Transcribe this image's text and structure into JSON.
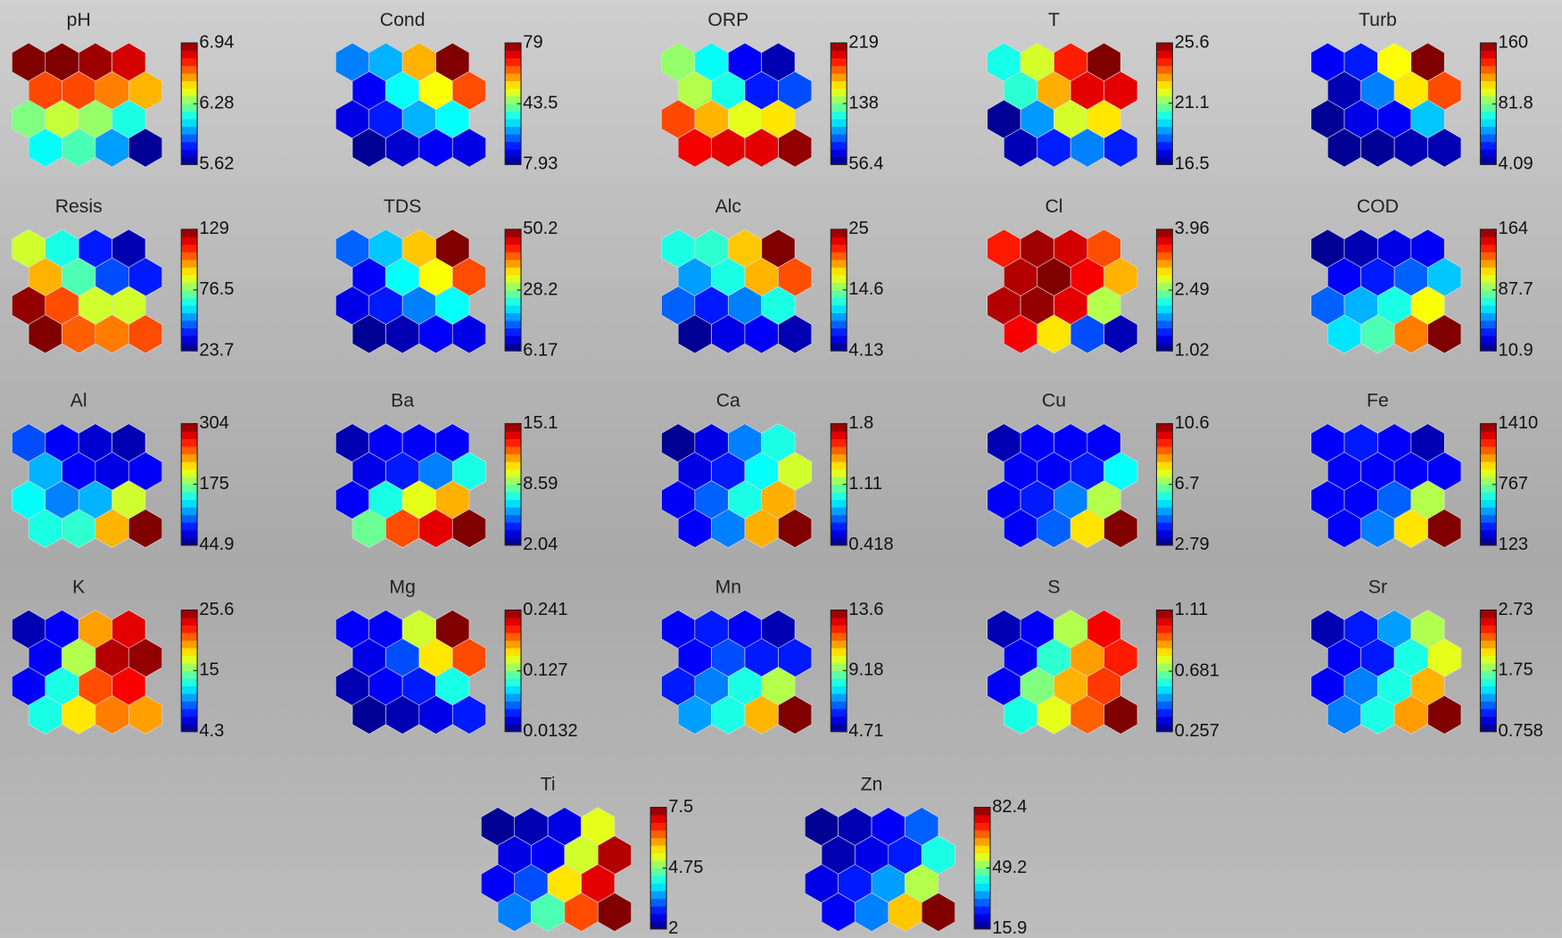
{
  "chart_data": [
    {
      "type": "hexmap",
      "title": "pH",
      "colormap": "jet",
      "clim": [
        5.62,
        6.94
      ],
      "cticks": [
        5.62,
        6.28,
        6.94
      ],
      "values": [
        6.94,
        6.94,
        6.9,
        6.83,
        6.68,
        6.68,
        6.61,
        6.54,
        6.28,
        6.37,
        6.31,
        6.15,
        6.12,
        6.21,
        5.99,
        5.65
      ]
    },
    {
      "type": "hexmap",
      "title": "Cond",
      "colormap": "jet",
      "clim": [
        7.93,
        79
      ],
      "cticks": [
        7.93,
        43.5,
        79
      ],
      "values": [
        25.7,
        29.2,
        57.7,
        79,
        16.5,
        34.9,
        52.0,
        64.8,
        15.0,
        18.6,
        29.2,
        34.9,
        9.35,
        13.6,
        16.5,
        15.0
      ]
    },
    {
      "type": "hexmap",
      "title": "ORP",
      "colormap": "jet",
      "clim": [
        56.4,
        219
      ],
      "cticks": [
        56.4,
        138,
        219
      ],
      "values": [
        141,
        118,
        75.9,
        64.5,
        146,
        121,
        80.8,
        88.9,
        187,
        170,
        154,
        162,
        200,
        203,
        203,
        216
      ]
    },
    {
      "type": "hexmap",
      "title": "T",
      "colormap": "jet",
      "clim": [
        16.5,
        25.6
      ],
      "cticks": [
        16.5,
        21.1,
        25.6
      ],
      "values": [
        20.1,
        21.8,
        24.2,
        25.6,
        20.3,
        22.9,
        24.7,
        24.7,
        16.7,
        19.0,
        21.8,
        22.4,
        17.0,
        17.9,
        18.8,
        17.9
      ]
    },
    {
      "type": "hexmap",
      "title": "Turb",
      "colormap": "jet",
      "clim": [
        4.09,
        160
      ],
      "cticks": [
        4.09,
        81.8,
        160
      ],
      "values": [
        22.8,
        27.5,
        101,
        160,
        11.9,
        43.1,
        105,
        129,
        7.2,
        19.7,
        22.8,
        54.0,
        7.2,
        7.2,
        11.9,
        11.9
      ]
    },
    {
      "type": "hexmap",
      "title": "Resis",
      "colormap": "jet",
      "clim": [
        23.7,
        129
      ],
      "cticks": [
        23.7,
        76.5,
        129
      ],
      "values": [
        84.8,
        65.8,
        39.5,
        29.0,
        97.4,
        71.1,
        44.8,
        39.5,
        127,
        108,
        84.8,
        84.8,
        129,
        106,
        103,
        108
      ]
    },
    {
      "type": "hexmap",
      "title": "TDS",
      "colormap": "jet",
      "clim": [
        6.17,
        50.2
      ],
      "cticks": [
        6.17,
        28.2,
        50.2
      ],
      "values": [
        15.9,
        20.3,
        36.1,
        50.2,
        11.5,
        22.9,
        33.5,
        41.4,
        10.6,
        12.8,
        17.2,
        22.9,
        7.05,
        8.37,
        11.5,
        10.6
      ]
    },
    {
      "type": "hexmap",
      "title": "Alc",
      "colormap": "jet",
      "clim": [
        4.13,
        25
      ],
      "cticks": [
        4.13,
        14.6,
        25
      ],
      "values": [
        12.5,
        12.9,
        18.3,
        25,
        10.0,
        12.5,
        18.7,
        20.8,
        8.72,
        7.26,
        9.35,
        12.5,
        4.55,
        6.22,
        6.63,
        5.17
      ]
    },
    {
      "type": "hexmap",
      "title": "Cl",
      "colormap": "jet",
      "clim": [
        1.02,
        3.96
      ],
      "cticks": [
        1.02,
        2.49,
        3.96
      ],
      "values": [
        3.52,
        3.87,
        3.72,
        3.37,
        3.81,
        3.96,
        3.61,
        3.08,
        3.81,
        3.9,
        3.67,
        2.64,
        3.61,
        2.93,
        1.61,
        1.17
      ]
    },
    {
      "type": "hexmap",
      "title": "COD",
      "colormap": "jet",
      "clim": [
        10.9,
        164
      ],
      "cticks": [
        10.9,
        87.7,
        164
      ],
      "values": [
        14.0,
        18.6,
        26.2,
        29.3,
        29.3,
        33.9,
        44.6,
        59.9,
        44.6,
        56.8,
        72.1,
        106,
        64.5,
        79.8,
        126,
        164
      ]
    },
    {
      "type": "hexmap",
      "title": "Al",
      "colormap": "jet",
      "clim": [
        44.9,
        304
      ],
      "cticks": [
        44.9,
        175,
        304
      ],
      "values": [
        96.7,
        76.0,
        65.6,
        57.9,
        123,
        76.0,
        70.8,
        76.0,
        143,
        110,
        123,
        195,
        149,
        154,
        226,
        304
      ]
    },
    {
      "type": "hexmap",
      "title": "Ba",
      "colormap": "jet",
      "clim": [
        2.04,
        15.1
      ],
      "cticks": [
        2.04,
        8.59,
        15.1
      ],
      "values": [
        2.69,
        3.61,
        3.61,
        3.61,
        3.35,
        4.0,
        5.31,
        7.26,
        3.61,
        7.26,
        9.88,
        11.2,
        8.31,
        12.5,
        13.8,
        15.1
      ]
    },
    {
      "type": "hexmap",
      "title": "Ca",
      "colormap": "jet",
      "clim": [
        0.418,
        1.8
      ],
      "cticks": [
        0.418,
        1.11,
        1.8
      ],
      "values": [
        0.446,
        0.556,
        0.764,
        0.971,
        0.556,
        0.625,
        0.943,
        1.22,
        0.584,
        0.722,
        0.971,
        1.39,
        0.584,
        0.764,
        1.39,
        1.8
      ]
    },
    {
      "type": "hexmap",
      "title": "Cu",
      "colormap": "jet",
      "clim": [
        2.79,
        10.6
      ],
      "cticks": [
        2.79,
        6.7,
        10.6
      ],
      "values": [
        3.18,
        3.73,
        3.73,
        3.73,
        3.73,
        3.73,
        3.96,
        5.76,
        3.73,
        3.96,
        4.74,
        7.09,
        3.73,
        4.51,
        7.87,
        10.6
      ]
    },
    {
      "type": "hexmap",
      "title": "Fe",
      "colormap": "jet",
      "clim": [
        123,
        1410
      ],
      "cticks": [
        123,
        767,
        1410
      ],
      "values": [
        277,
        316,
        277,
        187,
        277,
        277,
        277,
        277,
        277,
        277,
        406,
        831,
        277,
        445,
        960,
        1410
      ]
    },
    {
      "type": "hexmap",
      "title": "K",
      "colormap": "jet",
      "clim": [
        4.3,
        25.6
      ],
      "cticks": [
        4.3,
        15,
        25.6
      ],
      "values": [
        5.37,
        6.86,
        19.6,
        23.5,
        6.86,
        16.0,
        24.5,
        25.2,
        6.86,
        12.8,
        21.3,
        23.0,
        12.8,
        18.1,
        20.3,
        19.6
      ]
    },
    {
      "type": "hexmap",
      "title": "Mg",
      "colormap": "jet",
      "clim": [
        0.0132,
        0.241
      ],
      "cticks": [
        0.0132,
        0.127,
        0.241
      ],
      "values": [
        0.0405,
        0.0405,
        0.145,
        0.241,
        0.036,
        0.0588,
        0.161,
        0.196,
        0.0246,
        0.0405,
        0.0474,
        0.104,
        0.0178,
        0.0246,
        0.036,
        0.0474
      ]
    },
    {
      "type": "hexmap",
      "title": "Mn",
      "colormap": "jet",
      "clim": [
        4.71,
        13.6
      ],
      "cticks": [
        4.71,
        9.18,
        13.6
      ],
      "values": [
        5.78,
        6.04,
        5.78,
        5.15,
        5.78,
        6.49,
        6.04,
        6.04,
        6.04,
        6.93,
        8.27,
        9.6,
        7.2,
        8.27,
        10.9,
        13.6
      ]
    },
    {
      "type": "hexmap",
      "title": "S",
      "colormap": "jet",
      "clim": [
        0.257,
        1.11
      ],
      "cticks": [
        0.257,
        0.681,
        1.11
      ],
      "values": [
        0.3,
        0.359,
        0.726,
        1.01,
        0.359,
        0.615,
        0.871,
        0.982,
        0.359,
        0.684,
        0.854,
        0.956,
        0.598,
        0.769,
        0.922,
        1.11
      ]
    },
    {
      "type": "hexmap",
      "title": "Sr",
      "colormap": "jet",
      "clim": [
        0.758,
        2.73
      ],
      "cticks": [
        0.758,
        1.75,
        2.73
      ],
      "values": [
        0.857,
        1.05,
        1.31,
        1.84,
        0.995,
        1.05,
        1.55,
        1.94,
        0.995,
        1.25,
        1.55,
        2.14,
        1.25,
        1.55,
        2.18,
        2.73
      ]
    },
    {
      "type": "hexmap",
      "title": "Ti",
      "colormap": "jet",
      "clim": [
        2,
        7.5
      ],
      "cticks": [
        2,
        4.75,
        7.5
      ],
      "values": [
        2.11,
        2.28,
        2.55,
        5.3,
        2.55,
        2.66,
        5.19,
        7.23,
        2.66,
        3.1,
        5.58,
        6.95,
        3.38,
        4.48,
        6.4,
        7.5
      ]
    },
    {
      "type": "hexmap",
      "title": "Zn",
      "colormap": "jet",
      "clim": [
        15.9,
        82.4
      ],
      "cticks": [
        15.9,
        49.2,
        82.4
      ],
      "values": [
        17.2,
        19.2,
        23.9,
        30.5,
        19.2,
        22.6,
        25.9,
        42.5,
        22.6,
        25.9,
        34.5,
        52.5,
        23.9,
        32.5,
        61.1,
        82.4
      ]
    }
  ]
}
